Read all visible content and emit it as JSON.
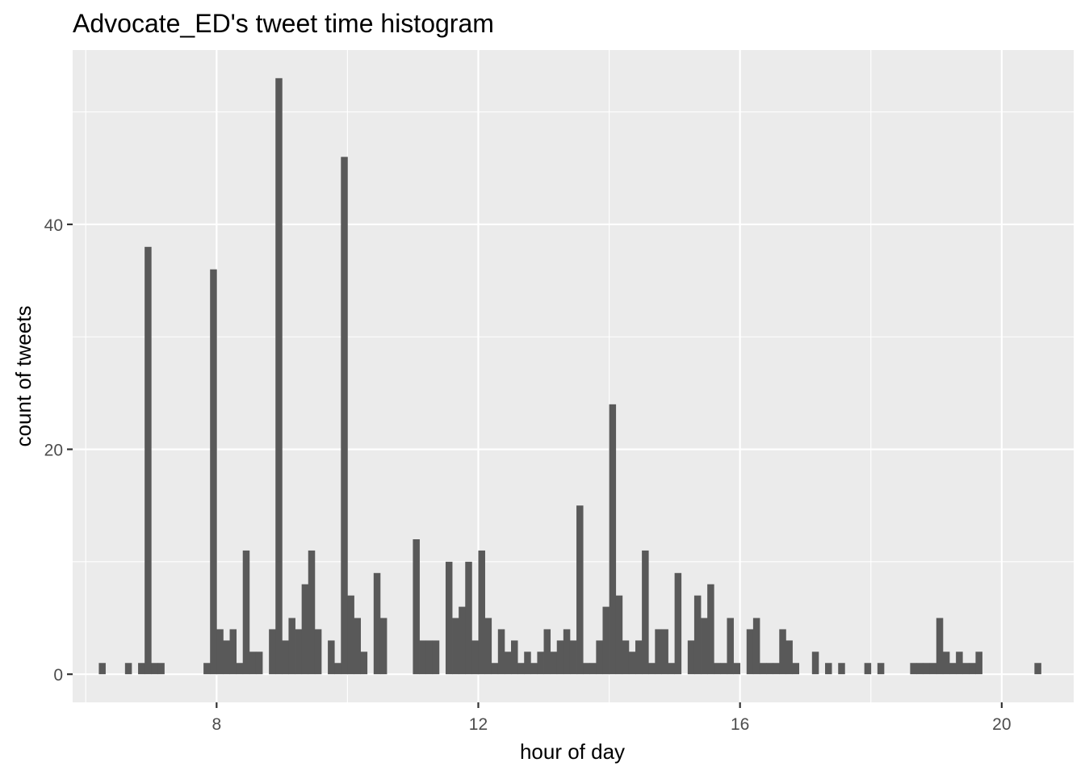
{
  "chart_data": {
    "type": "bar",
    "title": "Advocate_ED's tweet time histogram",
    "xlabel": "hour of day",
    "ylabel": "count of tweets",
    "xlim": [
      5.8,
      21.1
    ],
    "ylim": [
      -2.5,
      55.5
    ],
    "x_ticks": [
      8,
      12,
      16,
      20
    ],
    "x_tick_labels": [
      "8",
      "12",
      "16",
      "20"
    ],
    "y_ticks": [
      0,
      20,
      40
    ],
    "y_tick_labels": [
      "0",
      "20",
      "40"
    ],
    "grid": true,
    "bin_width": 0.1,
    "bin_start": 6.2,
    "values": [
      1,
      0,
      0,
      0,
      1,
      0,
      1,
      38,
      1,
      1,
      0,
      0,
      0,
      0,
      0,
      0,
      1,
      36,
      4,
      3,
      4,
      1,
      11,
      2,
      2,
      0,
      4,
      53,
      3,
      5,
      4,
      8,
      11,
      4,
      0,
      3,
      1,
      46,
      7,
      5,
      2,
      0,
      9,
      5,
      0,
      0,
      0,
      0,
      12,
      3,
      3,
      3,
      0,
      10,
      5,
      6,
      10,
      3,
      11,
      5,
      1,
      4,
      2,
      3,
      1,
      2,
      1,
      2,
      4,
      2,
      3,
      4,
      3,
      15,
      1,
      1,
      3,
      6,
      24,
      7,
      3,
      2,
      3,
      11,
      1,
      4,
      4,
      1,
      9,
      0,
      3,
      7,
      5,
      8,
      1,
      1,
      5,
      1,
      0,
      4,
      5,
      1,
      1,
      1,
      4,
      3,
      1,
      0,
      0,
      2,
      0,
      1,
      0,
      1,
      0,
      0,
      0,
      1,
      0,
      1,
      0,
      0,
      0,
      0,
      1,
      1,
      1,
      1,
      5,
      2,
      1,
      2,
      1,
      1,
      2,
      0,
      0,
      0,
      0,
      0,
      0,
      0,
      0,
      1
    ],
    "bar_color": "#595959",
    "panel_background": "#ebebeb",
    "grid_color": "#ffffff"
  }
}
